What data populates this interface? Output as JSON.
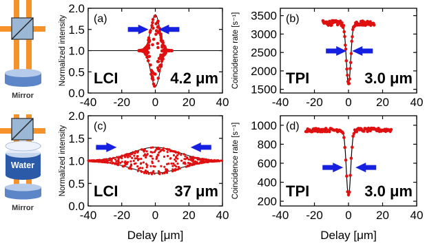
{
  "colors": {
    "data": "#e01010",
    "arrow": "#1520e0",
    "beam": "#f5922a",
    "mirror_top": "#a8c0e8",
    "mirror_body": "#5d86c8",
    "water": "#2a5aa8"
  },
  "schematic": {
    "top_label": "Mirror",
    "bottom_label": "Mirror",
    "water_label": "Water"
  },
  "chart_data": [
    {
      "id": "a",
      "type": "scatter",
      "panel_label": "(a)",
      "annotation_left": "LCI",
      "annotation_right": "4.2 μm",
      "ylabel": "Normalized intensity",
      "xlabel": "",
      "xlim": [
        -40,
        40
      ],
      "ylim": [
        0,
        2.0
      ],
      "xticks": [
        -40,
        -20,
        0,
        20,
        40
      ],
      "yticks": [
        0,
        0.5,
        1.0,
        1.5,
        2.0
      ],
      "ytick_labels": [
        "0.0",
        "0.5",
        "1.0",
        "1.5",
        "2.0"
      ],
      "model": {
        "kind": "interference-envelope",
        "baseline": 1.0,
        "amplitude": 0.85,
        "width": 4.2
      },
      "arrows": [
        {
          "dir": "right",
          "x": -11,
          "y": 1.5
        },
        {
          "dir": "left",
          "x": 9,
          "y": 1.5
        }
      ]
    },
    {
      "id": "b",
      "type": "scatter",
      "panel_label": "(b)",
      "annotation_left": "TPI",
      "annotation_right": "3.0 μm",
      "ylabel": "Coincidence rate [s⁻¹]",
      "xlabel": "",
      "xlim": [
        -40,
        40
      ],
      "ylim": [
        1400,
        3700
      ],
      "xticks": [
        -40,
        -20,
        0,
        20,
        40
      ],
      "yticks": [
        1500,
        2000,
        2500,
        3000,
        3500
      ],
      "ytick_labels": [
        "1500",
        "2000",
        "2500",
        "3000",
        "3500"
      ],
      "model": {
        "kind": "hom-dip",
        "baseline": 3300,
        "dip_min": 1620,
        "width": 3.0,
        "xrange": [
          -15,
          15
        ]
      },
      "arrows": [
        {
          "dir": "right",
          "x": -8,
          "y": 2540
        },
        {
          "dir": "left",
          "x": 9,
          "y": 2540
        }
      ]
    },
    {
      "id": "c",
      "type": "scatter",
      "panel_label": "(c)",
      "annotation_left": "LCI",
      "annotation_right": "37 μm",
      "ylabel": "Normalized intensity",
      "xlabel": "Delay [μm]",
      "xlim": [
        -40,
        40
      ],
      "ylim": [
        0,
        2.0
      ],
      "xticks": [
        -40,
        -20,
        0,
        20,
        40
      ],
      "yticks": [
        0,
        0.5,
        1.0,
        1.5,
        2.0
      ],
      "ytick_labels": [
        "0.0",
        "0.5",
        "1.0",
        "1.5",
        "2.0"
      ],
      "model": {
        "kind": "interference-envelope",
        "baseline": 1.0,
        "amplitude": 0.3,
        "width": 37
      },
      "arrows": [
        {
          "dir": "right",
          "x": -30,
          "y": 1.3
        },
        {
          "dir": "left",
          "x": 28,
          "y": 1.3
        }
      ]
    },
    {
      "id": "d",
      "type": "scatter",
      "panel_label": "(d)",
      "annotation_left": "TPI",
      "annotation_right": "3.0 μm",
      "ylabel": "Coincidence rate [s⁻¹]",
      "xlabel": "Delay [μm]",
      "xlim": [
        -40,
        40
      ],
      "ylim": [
        150,
        1100
      ],
      "xticks": [
        -40,
        -20,
        0,
        20,
        40
      ],
      "yticks": [
        200,
        400,
        600,
        800,
        1000
      ],
      "ytick_labels": [
        "200",
        "400",
        "600",
        "800",
        "1000"
      ],
      "model": {
        "kind": "hom-dip",
        "baseline": 950,
        "dip_min": 255,
        "width": 3.0,
        "xrange": [
          -25,
          25
        ]
      },
      "arrows": [
        {
          "dir": "right",
          "x": -10,
          "y": 555
        },
        {
          "dir": "left",
          "x": 11,
          "y": 555
        }
      ]
    }
  ]
}
